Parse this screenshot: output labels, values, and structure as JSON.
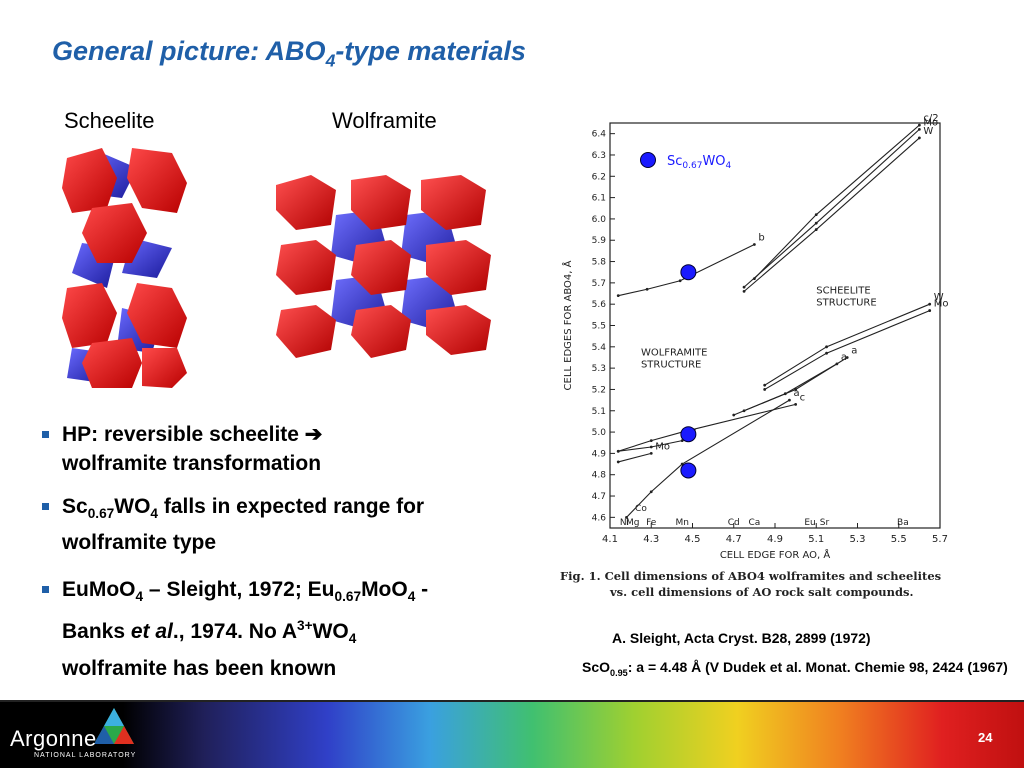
{
  "slide": {
    "title_main": "General picture: ABO",
    "title_sub": "4",
    "title_end": "-type materials",
    "page_number": "24"
  },
  "structures": {
    "scheelite_label": "Scheelite",
    "wolframite_label": "Wolframite"
  },
  "bullets": {
    "b1_text": "HP: reversible scheelite ",
    "b1_arrow": "➔",
    "b1_line2": "wolframite transformation",
    "b2_pre": "Sc",
    "b2_sub1": "0.67",
    "b2_mid": "WO",
    "b2_sub2": "4",
    "b2_post": " falls in expected range for",
    "b2_line2": "wolframite type",
    "b3_p1": "EuMoO",
    "b3_s1": "4",
    "b3_p2": " – Sleight, 1972; Eu",
    "b3_s2": "0.67",
    "b3_p3": "MoO",
    "b3_s3": "4",
    "b3_p4": " -",
    "b3_p5": "Banks ",
    "b3_etal": "et al",
    "b3_p6": "., 1974. No A",
    "b3_sup": "3+",
    "b3_p7": "WO",
    "b3_s4": "4",
    "b3_line3": "wolframite has been known"
  },
  "references": {
    "ref1": "A. Sleight, Acta Cryst. B28, 2899 (1972)",
    "ref2_pre": "ScO",
    "ref2_sub": "0.95",
    "ref2_post": ": a = 4.48 Å (V Dudek et al. Monat. Chemie 98, 2424 (1967)"
  },
  "footer": {
    "logo_text": "Argonne",
    "logo_sub": "NATIONAL LABORATORY"
  },
  "chart_data": {
    "type": "scatter",
    "xlabel": "CELL EDGE FOR AO, Å",
    "ylabel": "CELL EDGES FOR ABO4, Å",
    "xlim": [
      4.1,
      5.7
    ],
    "ylim": [
      4.55,
      6.45
    ],
    "x_ticks": [
      "4.1",
      "4.3",
      "4.5",
      "4.7",
      "4.9",
      "5.1",
      "5.3",
      "5.5",
      "5.7"
    ],
    "x_tick_values": [
      4.1,
      4.3,
      4.5,
      4.7,
      4.9,
      5.1,
      5.3,
      5.5,
      5.7
    ],
    "y_ticks": [
      "4.6",
      "4.7",
      "4.8",
      "4.9",
      "5.0",
      "5.1",
      "5.2",
      "5.3",
      "5.4",
      "5.5",
      "5.6",
      "5.7",
      "5.8",
      "5.9",
      "6.0",
      "6.1",
      "6.2",
      "6.3",
      "6.4"
    ],
    "y_tick_values": [
      4.6,
      4.7,
      4.8,
      4.9,
      5.0,
      5.1,
      5.2,
      5.3,
      5.4,
      5.5,
      5.6,
      5.7,
      5.8,
      5.9,
      6.0,
      6.1,
      6.2,
      6.3,
      6.4
    ],
    "element_labels": [
      {
        "text": "Ni",
        "x": 4.17
      },
      {
        "text": "Mg",
        "x": 4.21
      },
      {
        "text": "Fe",
        "x": 4.3
      },
      {
        "text": "Mn",
        "x": 4.45
      },
      {
        "text": "Cd",
        "x": 4.7
      },
      {
        "text": "Ca",
        "x": 4.8
      },
      {
        "text": "Eu",
        "x": 5.07
      },
      {
        "text": "Sr",
        "x": 5.14
      },
      {
        "text": "Ba",
        "x": 5.52
      }
    ],
    "co_label": {
      "text": "Co",
      "x": 4.25,
      "y": 4.63
    },
    "region_labels": [
      {
        "lines": [
          "WOLFRAMITE",
          "STRUCTURE"
        ],
        "x": 4.25,
        "y": 5.36
      },
      {
        "lines": [
          "SCHEELITE",
          "STRUCTURE"
        ],
        "x": 5.1,
        "y": 5.65
      }
    ],
    "series": [
      {
        "label": "b",
        "x": [
          4.14,
          4.28,
          4.44,
          4.8
        ],
        "y": [
          5.64,
          5.67,
          5.71,
          5.88
        ]
      },
      {
        "label": "c",
        "x": [
          4.14,
          4.3,
          4.45,
          5.0
        ],
        "y": [
          4.91,
          4.96,
          5.0,
          5.13
        ]
      },
      {
        "label": "a",
        "x": [
          4.18,
          4.3,
          4.45,
          4.97
        ],
        "y": [
          4.6,
          4.72,
          4.85,
          5.15
        ]
      },
      {
        "label": "W",
        "x": [
          4.14,
          4.3,
          4.45
        ],
        "y": [
          4.91,
          4.93,
          4.96
        ]
      },
      {
        "label": "Mo",
        "x": [
          4.14,
          4.3
        ],
        "y": [
          4.86,
          4.9
        ]
      },
      {
        "label": "Mo",
        "x": [
          4.75,
          5.1,
          5.6
        ],
        "y": [
          5.68,
          5.98,
          6.42
        ]
      },
      {
        "label": "c/2",
        "x": [
          4.8,
          5.1,
          5.6
        ],
        "y": [
          5.72,
          6.02,
          6.44
        ]
      },
      {
        "label": "W",
        "x": [
          4.75,
          5.1,
          5.6
        ],
        "y": [
          5.66,
          5.95,
          6.38
        ]
      },
      {
        "label": "W",
        "x": [
          4.85,
          5.15,
          5.65
        ],
        "y": [
          5.22,
          5.4,
          5.6
        ]
      },
      {
        "label": "Mo",
        "x": [
          4.85,
          5.15,
          5.65
        ],
        "y": [
          5.2,
          5.37,
          5.57
        ]
      },
      {
        "label": "a",
        "x": [
          4.75,
          5.0,
          5.25
        ],
        "y": [
          5.1,
          5.2,
          5.35
        ]
      },
      {
        "label": "a",
        "x": [
          4.7,
          4.95,
          5.2
        ],
        "y": [
          5.08,
          5.18,
          5.32
        ]
      }
    ],
    "highlight_points": [
      {
        "x": 4.48,
        "y": 5.75
      },
      {
        "x": 4.48,
        "y": 4.99
      },
      {
        "x": 4.48,
        "y": 4.82
      }
    ],
    "legend": {
      "marker": "filled-circle",
      "color": "#1a1aff",
      "label_pre": "Sc",
      "label_sub": "0.67",
      "label_post": "WO",
      "label_sub2": "4",
      "placement": "top-left"
    },
    "caption": "Fig. 1. Cell dimensions of ABO4 wolframites and scheelites vs. cell dimensions of AO rock salt compounds.",
    "grid": false
  }
}
